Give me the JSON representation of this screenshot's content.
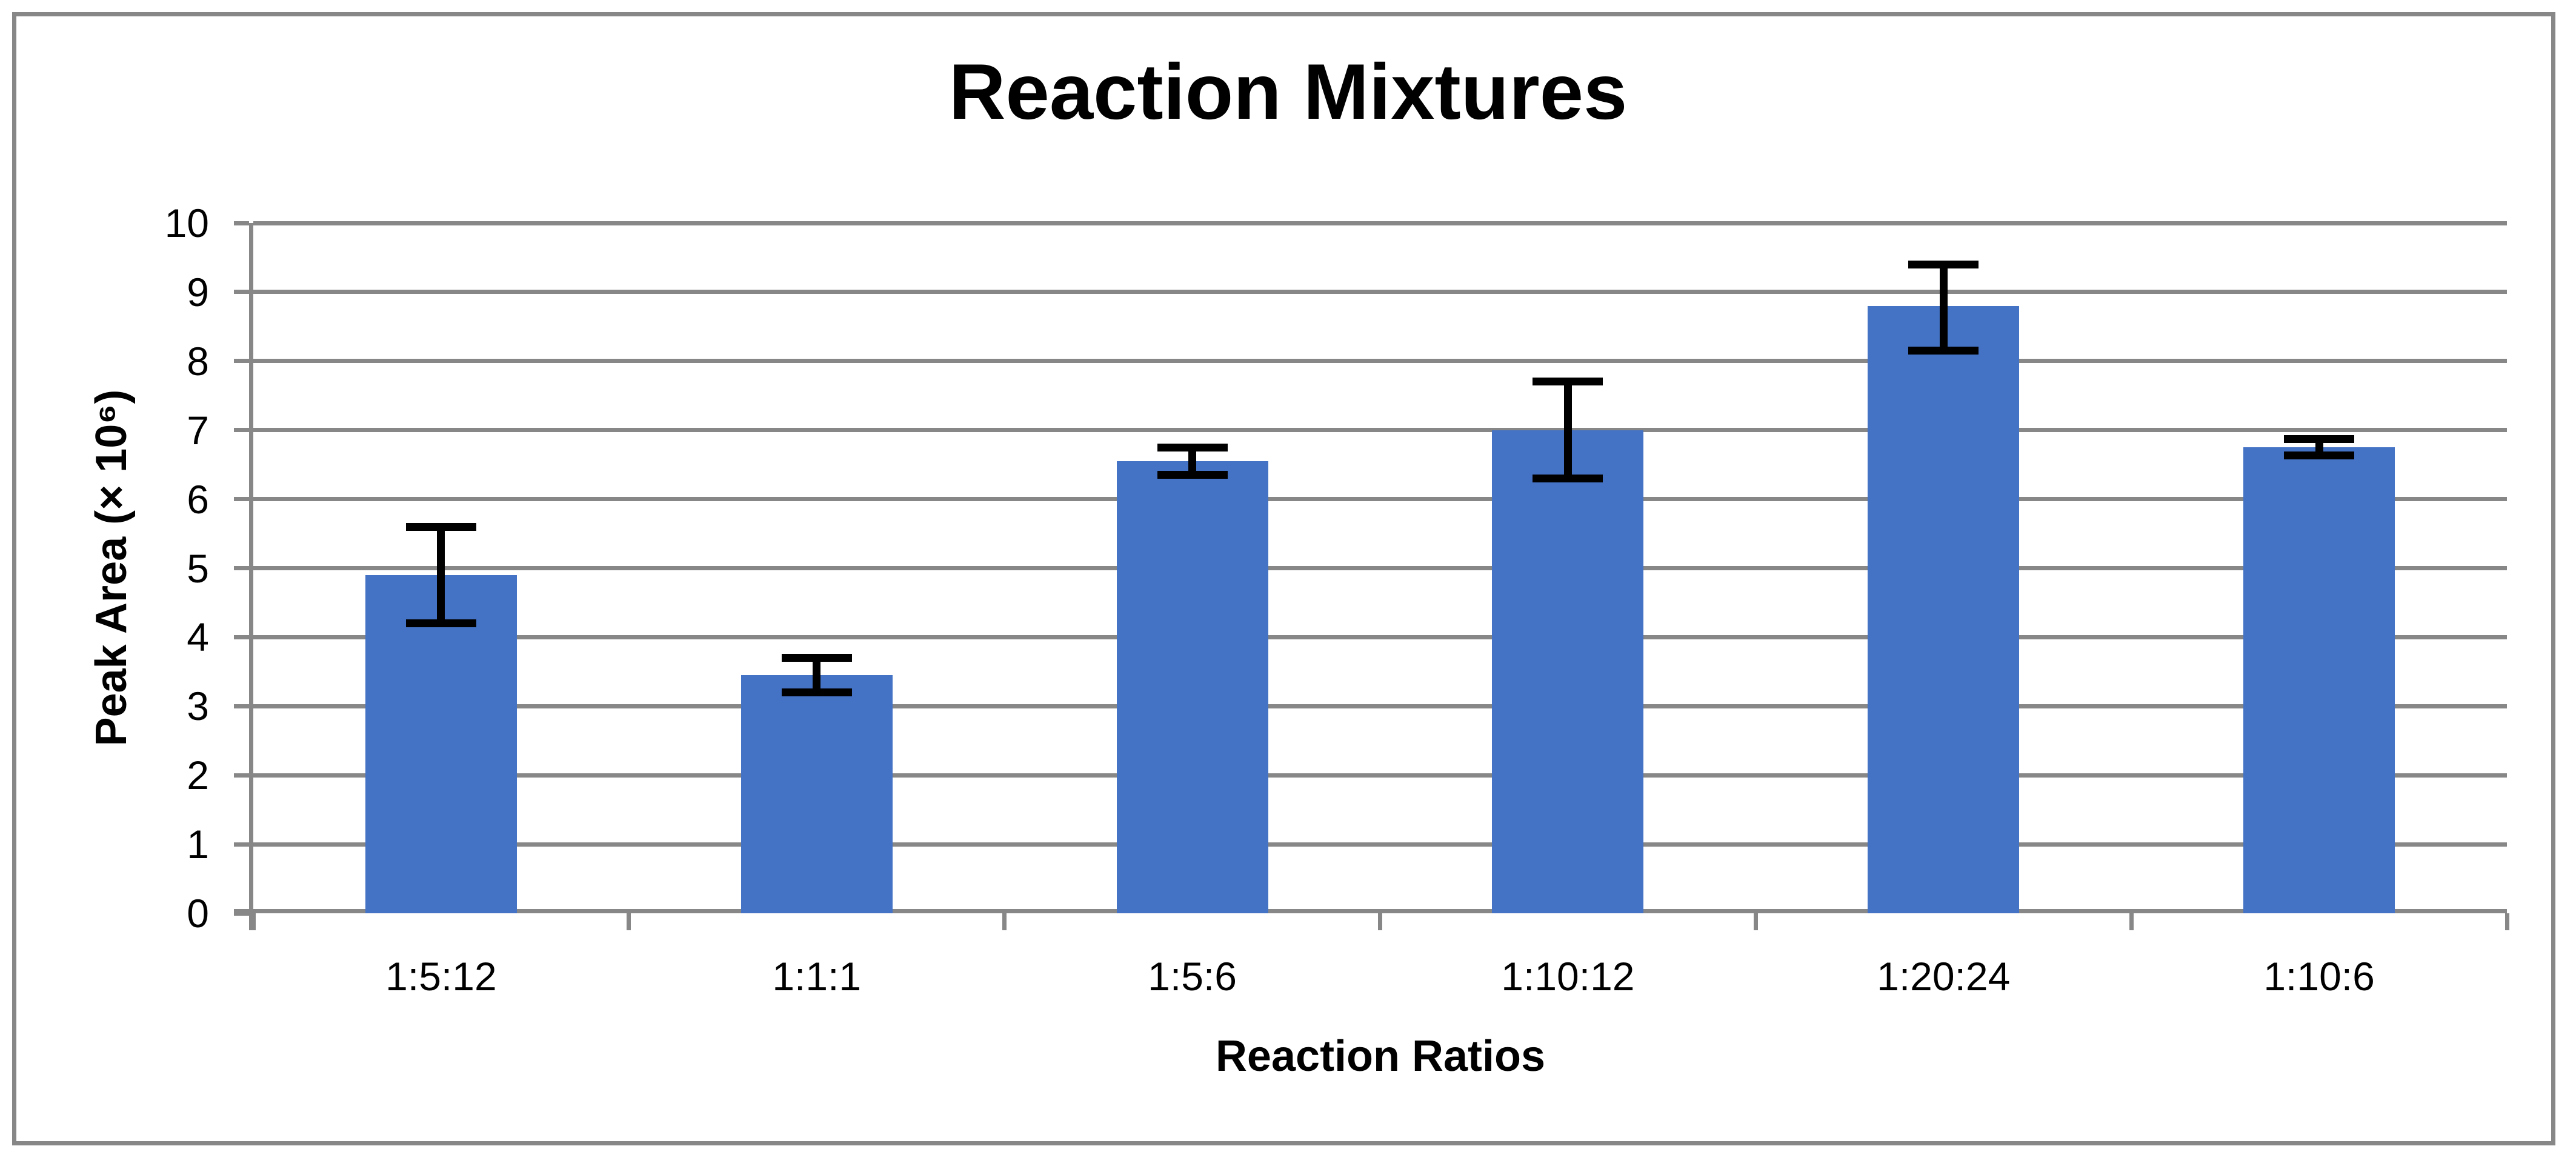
{
  "chart_data": {
    "type": "bar",
    "title": "Reaction Mixtures",
    "xlabel": "Reaction Ratios",
    "ylabel": "Peak Area (× 10⁶)",
    "categories": [
      "1:5:12",
      "1:1:1",
      "1:5:6",
      "1:10:12",
      "1:20:24",
      "1:10:6"
    ],
    "values": [
      4.9,
      3.45,
      6.55,
      7.0,
      8.8,
      6.75
    ],
    "error_plus": [
      0.7,
      0.25,
      0.2,
      0.7,
      0.6,
      0.12
    ],
    "error_minus": [
      0.7,
      0.25,
      0.2,
      0.7,
      0.65,
      0.12
    ],
    "ylim": [
      0,
      10
    ],
    "yticks": [
      0,
      1,
      2,
      3,
      4,
      5,
      6,
      7,
      8,
      9,
      10
    ],
    "grid": "horizontal",
    "legend_position": "none",
    "colors": {
      "bar": "#4472C4",
      "gridline": "#878787",
      "axis": "#878787",
      "tick": "#878787",
      "error_bar": "#000000",
      "text": "#000000",
      "border": "#878787",
      "background": "#FFFFFF"
    }
  }
}
